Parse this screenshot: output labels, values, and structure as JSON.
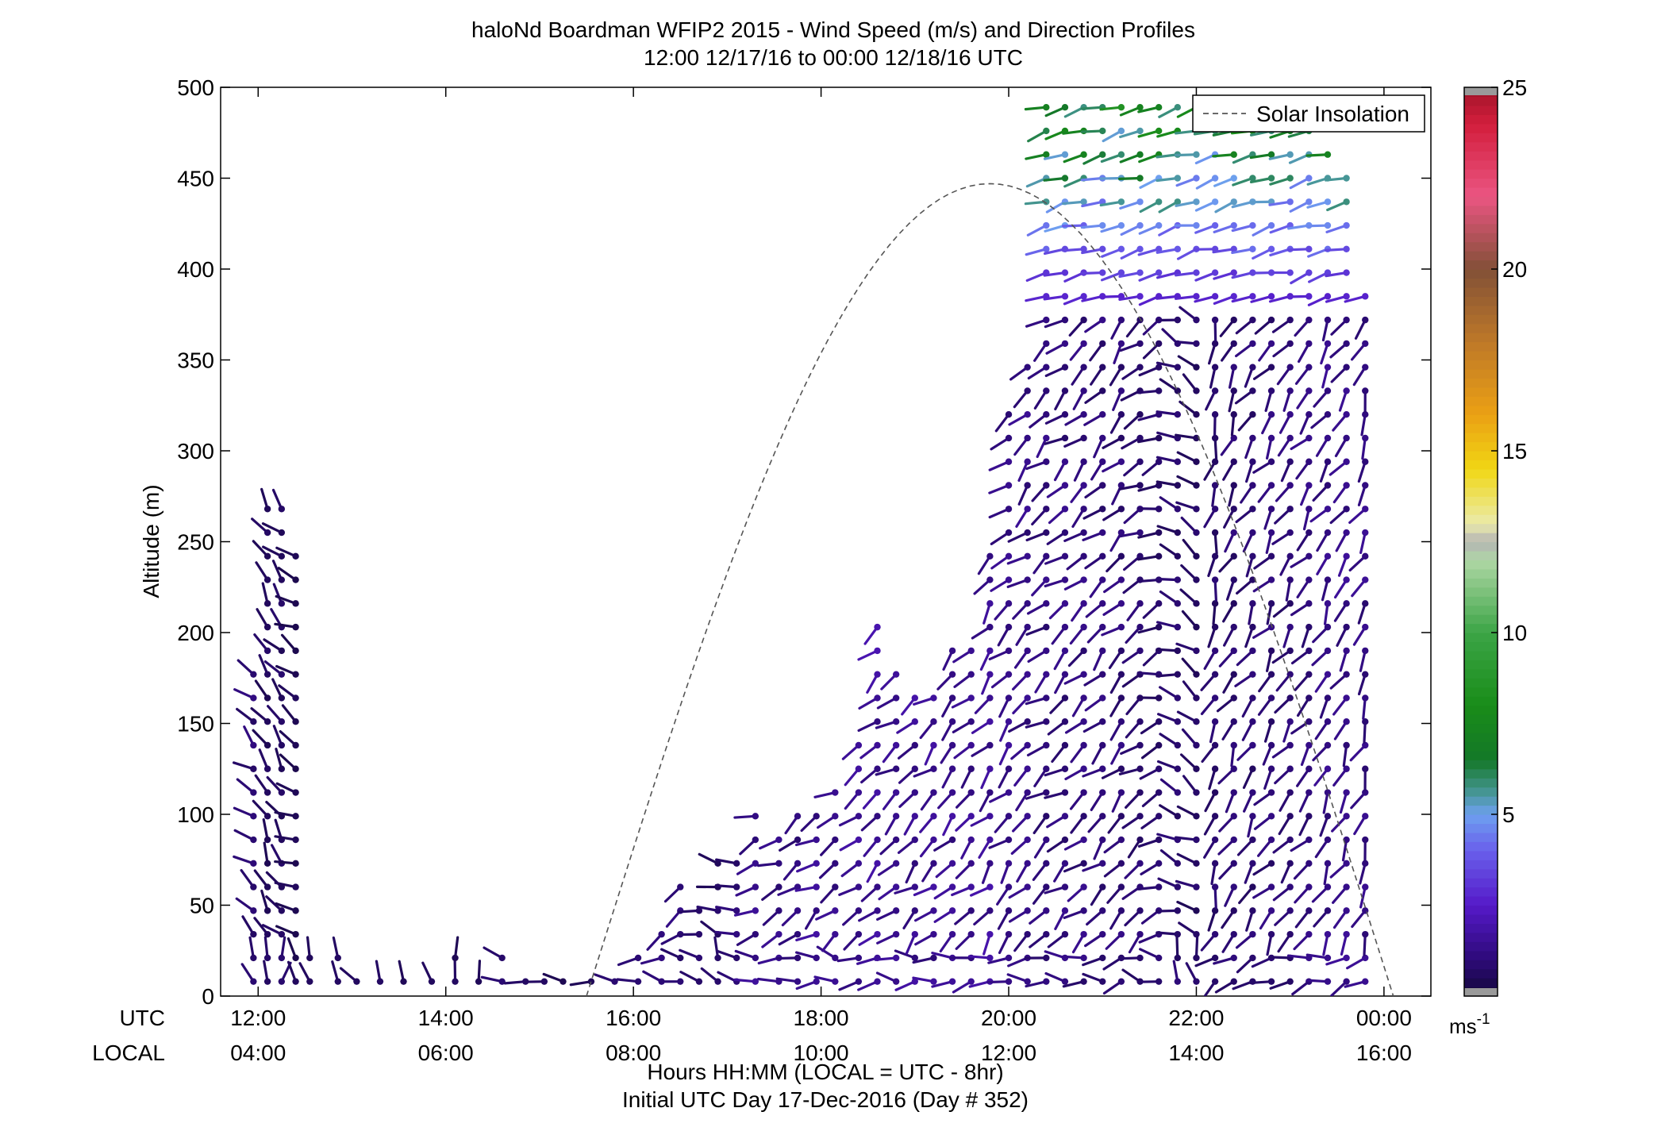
{
  "chart_data": {
    "type": "wind-barb-profile",
    "title_line1": "haloNd Boardman WFIP2 2015 - Wind Speed (m/s) and Direction Profiles",
    "title_line2": "12:00 12/17/16 to 00:00 12/18/16  UTC",
    "ylabel": "Altitude (m)",
    "xlabel_line1": "Hours HH:MM  (LOCAL = UTC - 8hr)",
    "xlabel_line2": "Initial UTC Day 17-Dec-2016 (Day # 352)",
    "utc_row_label": "UTC",
    "local_row_label": "LOCAL",
    "xlim_hours": [
      11.6,
      24.5
    ],
    "ylim": [
      0,
      500
    ],
    "y_ticks": [
      0,
      50,
      100,
      150,
      200,
      250,
      300,
      350,
      400,
      450,
      500
    ],
    "x_ticks": [
      {
        "hour": 12,
        "utc": "12:00",
        "local": "04:00"
      },
      {
        "hour": 14,
        "utc": "14:00",
        "local": "06:00"
      },
      {
        "hour": 16,
        "utc": "16:00",
        "local": "08:00"
      },
      {
        "hour": 18,
        "utc": "18:00",
        "local": "10:00"
      },
      {
        "hour": 20,
        "utc": "20:00",
        "local": "12:00"
      },
      {
        "hour": 22,
        "utc": "22:00",
        "local": "14:00"
      },
      {
        "hour": 24,
        "utc": "00:00",
        "local": "16:00"
      }
    ],
    "legend": {
      "label": "Solar Insolation",
      "placement": "top-right"
    },
    "colorbar": {
      "min": 0,
      "max": 25,
      "ticks": [
        5,
        10,
        15,
        20,
        25
      ],
      "unit_label": "ms",
      "unit_exponent": "-1"
    },
    "solar_insolation_curve": {
      "start_hour": 15.5,
      "peak_hour": 19.8,
      "peak_altitude": 447,
      "end_hour": 24.1
    },
    "profile_columns": [
      {
        "hour": 11.95,
        "top": 185,
        "spd": 0.9,
        "dir": 310
      },
      {
        "hour": 12.1,
        "top": 280,
        "spd": 0.6,
        "dir": 330
      },
      {
        "hour": 12.25,
        "top": 268,
        "spd": 0.7,
        "dir": 320
      },
      {
        "hour": 12.4,
        "top": 245,
        "spd": 0.5,
        "dir": 300
      },
      {
        "hour": 12.55,
        "top": 30,
        "spd": 0.6,
        "dir": 290
      },
      {
        "hour": 12.85,
        "top": 30,
        "spd": 0.6,
        "dir": 280
      },
      {
        "hour": 13.05,
        "top": 20,
        "spd": 0.5,
        "dir": 270
      },
      {
        "hour": 13.3,
        "top": 20,
        "spd": 0.6,
        "dir": 285
      },
      {
        "hour": 13.55,
        "top": 20,
        "spd": 0.5,
        "dir": 300
      },
      {
        "hour": 13.85,
        "top": 20,
        "spd": 0.5,
        "dir": 320
      },
      {
        "hour": 14.1,
        "top": 25,
        "spd": 0.5,
        "dir": 310
      },
      {
        "hour": 14.35,
        "top": 20,
        "spd": 0.5,
        "dir": 300
      },
      {
        "hour": 14.6,
        "top": 25,
        "spd": 0.8,
        "dir": 250
      },
      {
        "hour": 14.85,
        "top": 20,
        "spd": 0.9,
        "dir": 245
      },
      {
        "hour": 15.05,
        "top": 20,
        "spd": 0.8,
        "dir": 240
      },
      {
        "hour": 15.25,
        "top": 20,
        "spd": 0.6,
        "dir": 250
      },
      {
        "hour": 15.55,
        "top": 20,
        "spd": 0.7,
        "dir": 240
      },
      {
        "hour": 15.8,
        "top": 15,
        "spd": 0.8,
        "dir": 235
      },
      {
        "hour": 16.05,
        "top": 25,
        "spd": 1.0,
        "dir": 230
      },
      {
        "hour": 16.3,
        "top": 45,
        "spd": 1.1,
        "dir": 235
      },
      {
        "hour": 16.5,
        "top": 70,
        "spd": 1.0,
        "dir": 240
      },
      {
        "hour": 16.7,
        "top": 55,
        "spd": 0.8,
        "dir": 280
      },
      {
        "hour": 16.9,
        "top": 75,
        "spd": 0.7,
        "dir": 285
      },
      {
        "hour": 17.1,
        "top": 80,
        "spd": 0.9,
        "dir": 270
      },
      {
        "hour": 17.3,
        "top": 100,
        "spd": 1.3,
        "dir": 245
      },
      {
        "hour": 17.55,
        "top": 95,
        "spd": 1.2,
        "dir": 240
      },
      {
        "hour": 17.75,
        "top": 100,
        "spd": 1.2,
        "dir": 240
      },
      {
        "hour": 17.95,
        "top": 110,
        "spd": 1.4,
        "dir": 235
      },
      {
        "hour": 18.15,
        "top": 120,
        "spd": 1.4,
        "dir": 235
      },
      {
        "hour": 18.4,
        "top": 140,
        "spd": 1.5,
        "dir": 232
      },
      {
        "hour": 18.6,
        "top": 215,
        "spd": 1.6,
        "dir": 230
      },
      {
        "hour": 18.8,
        "top": 185,
        "spd": 1.5,
        "dir": 230
      },
      {
        "hour": 19.0,
        "top": 165,
        "spd": 1.5,
        "dir": 228
      },
      {
        "hour": 19.2,
        "top": 175,
        "spd": 1.4,
        "dir": 228
      },
      {
        "hour": 19.4,
        "top": 195,
        "spd": 1.4,
        "dir": 225
      },
      {
        "hour": 19.6,
        "top": 200,
        "spd": 1.4,
        "dir": 225
      },
      {
        "hour": 19.8,
        "top": 245,
        "spd": 1.5,
        "dir": 222
      },
      {
        "hour": 20.0,
        "top": 330,
        "spd": 1.3,
        "dir": 225
      },
      {
        "hour": 20.2,
        "top": 350,
        "spd": 1.2,
        "dir": 228
      },
      {
        "hour": 20.4,
        "top": 500,
        "spd": 1.1,
        "dir": 230
      },
      {
        "hour": 20.6,
        "top": 500,
        "spd": 1.1,
        "dir": 232
      },
      {
        "hour": 20.8,
        "top": 500,
        "spd": 1.1,
        "dir": 230
      },
      {
        "hour": 21.0,
        "top": 500,
        "spd": 1.0,
        "dir": 228
      },
      {
        "hour": 21.2,
        "top": 500,
        "spd": 1.0,
        "dir": 225
      },
      {
        "hour": 21.4,
        "top": 500,
        "spd": 0.9,
        "dir": 235
      },
      {
        "hour": 21.6,
        "top": 500,
        "spd": 0.8,
        "dir": 250
      },
      {
        "hour": 21.8,
        "top": 500,
        "spd": 0.8,
        "dir": 290
      },
      {
        "hour": 22.0,
        "top": 500,
        "spd": 0.7,
        "dir": 300
      },
      {
        "hour": 22.2,
        "top": 500,
        "spd": 0.8,
        "dir": 200
      },
      {
        "hour": 22.4,
        "top": 500,
        "spd": 0.9,
        "dir": 210
      },
      {
        "hour": 22.6,
        "top": 500,
        "spd": 0.9,
        "dir": 215
      },
      {
        "hour": 22.8,
        "top": 500,
        "spd": 1.0,
        "dir": 215
      },
      {
        "hour": 23.0,
        "top": 500,
        "spd": 1.0,
        "dir": 212
      },
      {
        "hour": 23.2,
        "top": 480,
        "spd": 1.1,
        "dir": 215
      },
      {
        "hour": 23.4,
        "top": 470,
        "spd": 1.2,
        "dir": 210
      },
      {
        "hour": 23.6,
        "top": 460,
        "spd": 1.3,
        "dir": 210
      },
      {
        "hour": 23.8,
        "top": 395,
        "spd": 1.2,
        "dir": 205
      }
    ],
    "upper_wind_layer": {
      "start_hour": 20.1,
      "end_hour": 23.9,
      "bottom": 380,
      "top": 500,
      "spd": 5.5,
      "dir": 255
    }
  }
}
